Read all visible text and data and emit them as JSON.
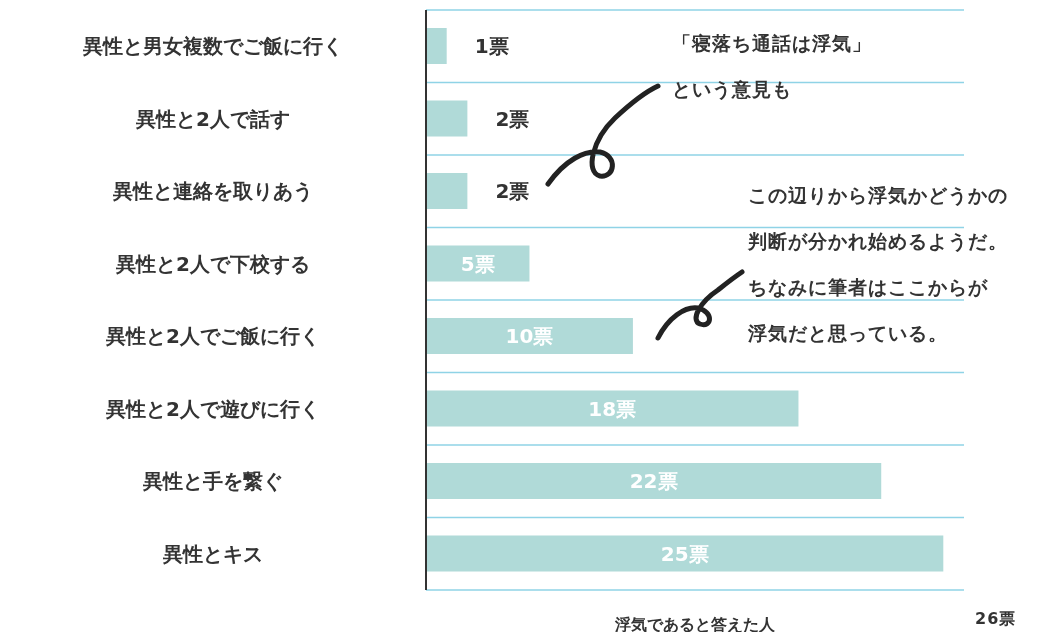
{
  "chart_data": {
    "type": "bar",
    "orientation": "horizontal",
    "categories": [
      "異性と男女複数でご飯に行く",
      "異性と2人で話す",
      "異性と連絡を取りあう",
      "異性と2人で下校する",
      "異性と2人でご飯に行く",
      "異性と2人で遊びに行く",
      "異性と手を繋ぐ",
      "異性とキス"
    ],
    "values": [
      1,
      2,
      2,
      5,
      10,
      18,
      22,
      25
    ],
    "value_labels": [
      "1票",
      "2票",
      "2票",
      "5票",
      "10票",
      "18票",
      "22票",
      "25票"
    ],
    "color": "#b0dad8",
    "xlabel": "浮気であると答えた人",
    "xlim": [
      0,
      26
    ],
    "grid": "y",
    "annotations": [
      "「寝落ち通話は浮気」という意見も",
      "この辺りから浮気かどうかの判断が分かれ始めるようだ。",
      "ちなみに筆者はここからが浮気だと思っている。",
      "26票"
    ]
  }
}
